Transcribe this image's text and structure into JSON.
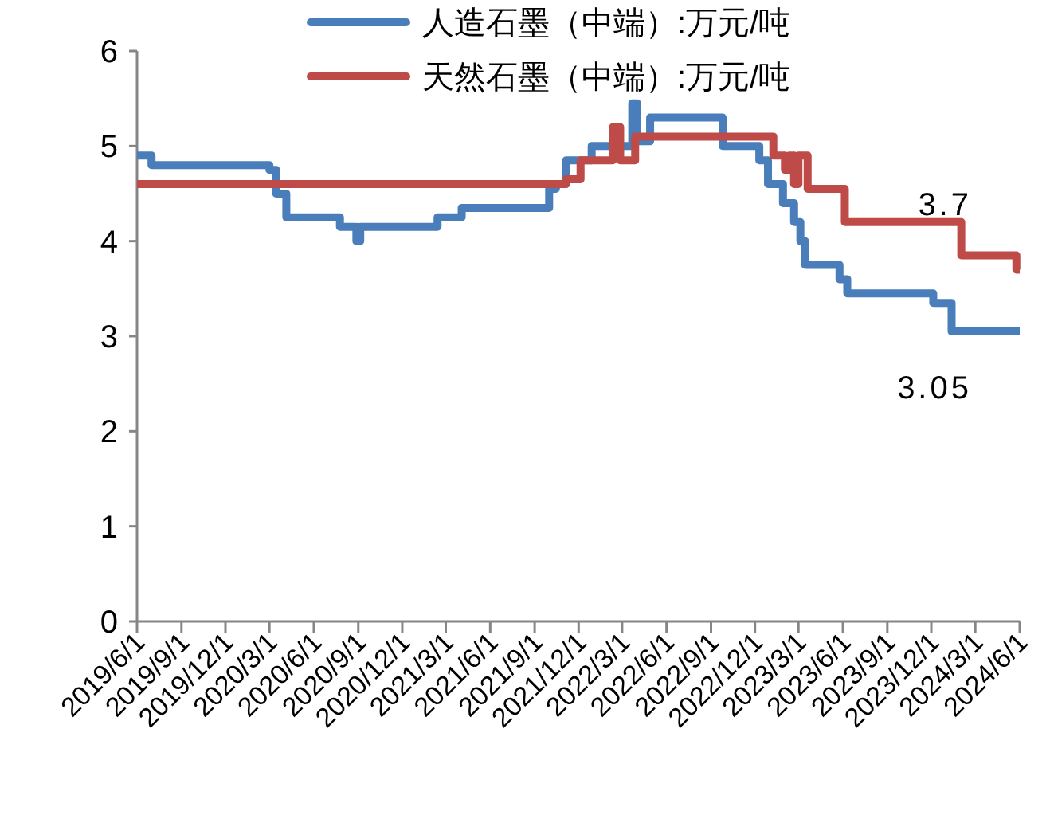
{
  "chart_data": {
    "type": "step",
    "xlim": [
      "2019-06-01",
      "2024-06-01"
    ],
    "ylim": [
      0,
      6
    ],
    "yticks": [
      0,
      1,
      2,
      3,
      4,
      5,
      6
    ],
    "xticks": [
      {
        "value": "2019-06-01",
        "label": "2019/6/1"
      },
      {
        "value": "2019-09-01",
        "label": "2019/9/1"
      },
      {
        "value": "2019-12-01",
        "label": "2019/12/1"
      },
      {
        "value": "2020-03-01",
        "label": "2020/3/1"
      },
      {
        "value": "2020-06-01",
        "label": "2020/6/1"
      },
      {
        "value": "2020-09-01",
        "label": "2020/9/1"
      },
      {
        "value": "2020-12-01",
        "label": "2020/12/1"
      },
      {
        "value": "2021-03-01",
        "label": "2021/3/1"
      },
      {
        "value": "2021-06-01",
        "label": "2021/6/1"
      },
      {
        "value": "2021-09-01",
        "label": "2021/9/1"
      },
      {
        "value": "2021-12-01",
        "label": "2021/12/1"
      },
      {
        "value": "2022-03-01",
        "label": "2022/3/1"
      },
      {
        "value": "2022-06-01",
        "label": "2022/6/1"
      },
      {
        "value": "2022-09-01",
        "label": "2022/9/1"
      },
      {
        "value": "2022-12-01",
        "label": "2022/12/1"
      },
      {
        "value": "2023-03-01",
        "label": "2023/3/1"
      },
      {
        "value": "2023-06-01",
        "label": "2023/6/1"
      },
      {
        "value": "2023-09-01",
        "label": "2023/9/1"
      },
      {
        "value": "2023-12-01",
        "label": "2023/12/1"
      },
      {
        "value": "2024-03-01",
        "label": "2024/3/1"
      },
      {
        "value": "2024-06-01",
        "label": "2024/6/1"
      }
    ],
    "legend": "top",
    "grid": false,
    "series": [
      {
        "name": "人造石墨（中端）:万元/吨",
        "color": "#4a7ebb",
        "x": [
          "2019-06-01",
          "2019-07-01",
          "2020-03-01",
          "2020-03-15",
          "2020-04-05",
          "2020-07-25",
          "2020-08-28",
          "2020-09-05",
          "2021-02-12",
          "2021-04-03",
          "2021-10-01",
          "2021-10-15",
          "2021-11-05",
          "2021-11-20",
          "2021-12-28",
          "2022-03-22",
          "2022-04-01",
          "2022-04-28",
          "2022-09-25",
          "2022-12-10",
          "2022-12-28",
          "2023-01-28",
          "2023-02-20",
          "2023-03-05",
          "2023-03-15",
          "2023-05-25",
          "2023-06-10",
          "2023-12-05",
          "2024-01-12",
          "2024-06-01"
        ],
        "values": [
          4.9,
          4.8,
          4.75,
          4.5,
          4.25,
          4.15,
          4.0,
          4.15,
          4.25,
          4.35,
          4.55,
          4.6,
          4.85,
          4.85,
          5.0,
          5.45,
          5.05,
          5.3,
          5.0,
          4.85,
          4.6,
          4.4,
          4.2,
          4.0,
          3.75,
          3.6,
          3.45,
          3.35,
          3.05,
          3.05
        ]
      },
      {
        "name": "天然石墨（中端）:万元/吨",
        "color": "#be4b48",
        "x": [
          "2019-06-01",
          "2021-11-05",
          "2021-12-05",
          "2022-02-10",
          "2022-02-25",
          "2022-03-28",
          "2023-01-08",
          "2023-02-01",
          "2023-02-10",
          "2023-02-20",
          "2023-03-01",
          "2023-03-20",
          "2023-06-05",
          "2024-02-01",
          "2024-05-25",
          "2024-06-01"
        ],
        "values": [
          4.6,
          4.65,
          4.85,
          5.2,
          4.85,
          5.1,
          4.9,
          4.75,
          4.9,
          4.6,
          4.9,
          4.55,
          4.2,
          3.85,
          3.7,
          3.7
        ]
      }
    ],
    "annotations": [
      {
        "text": "3.7",
        "x": "2024-06-01",
        "y": 3.7
      },
      {
        "text": "3.05",
        "x": "2024-06-01",
        "y": 3.05
      }
    ]
  }
}
